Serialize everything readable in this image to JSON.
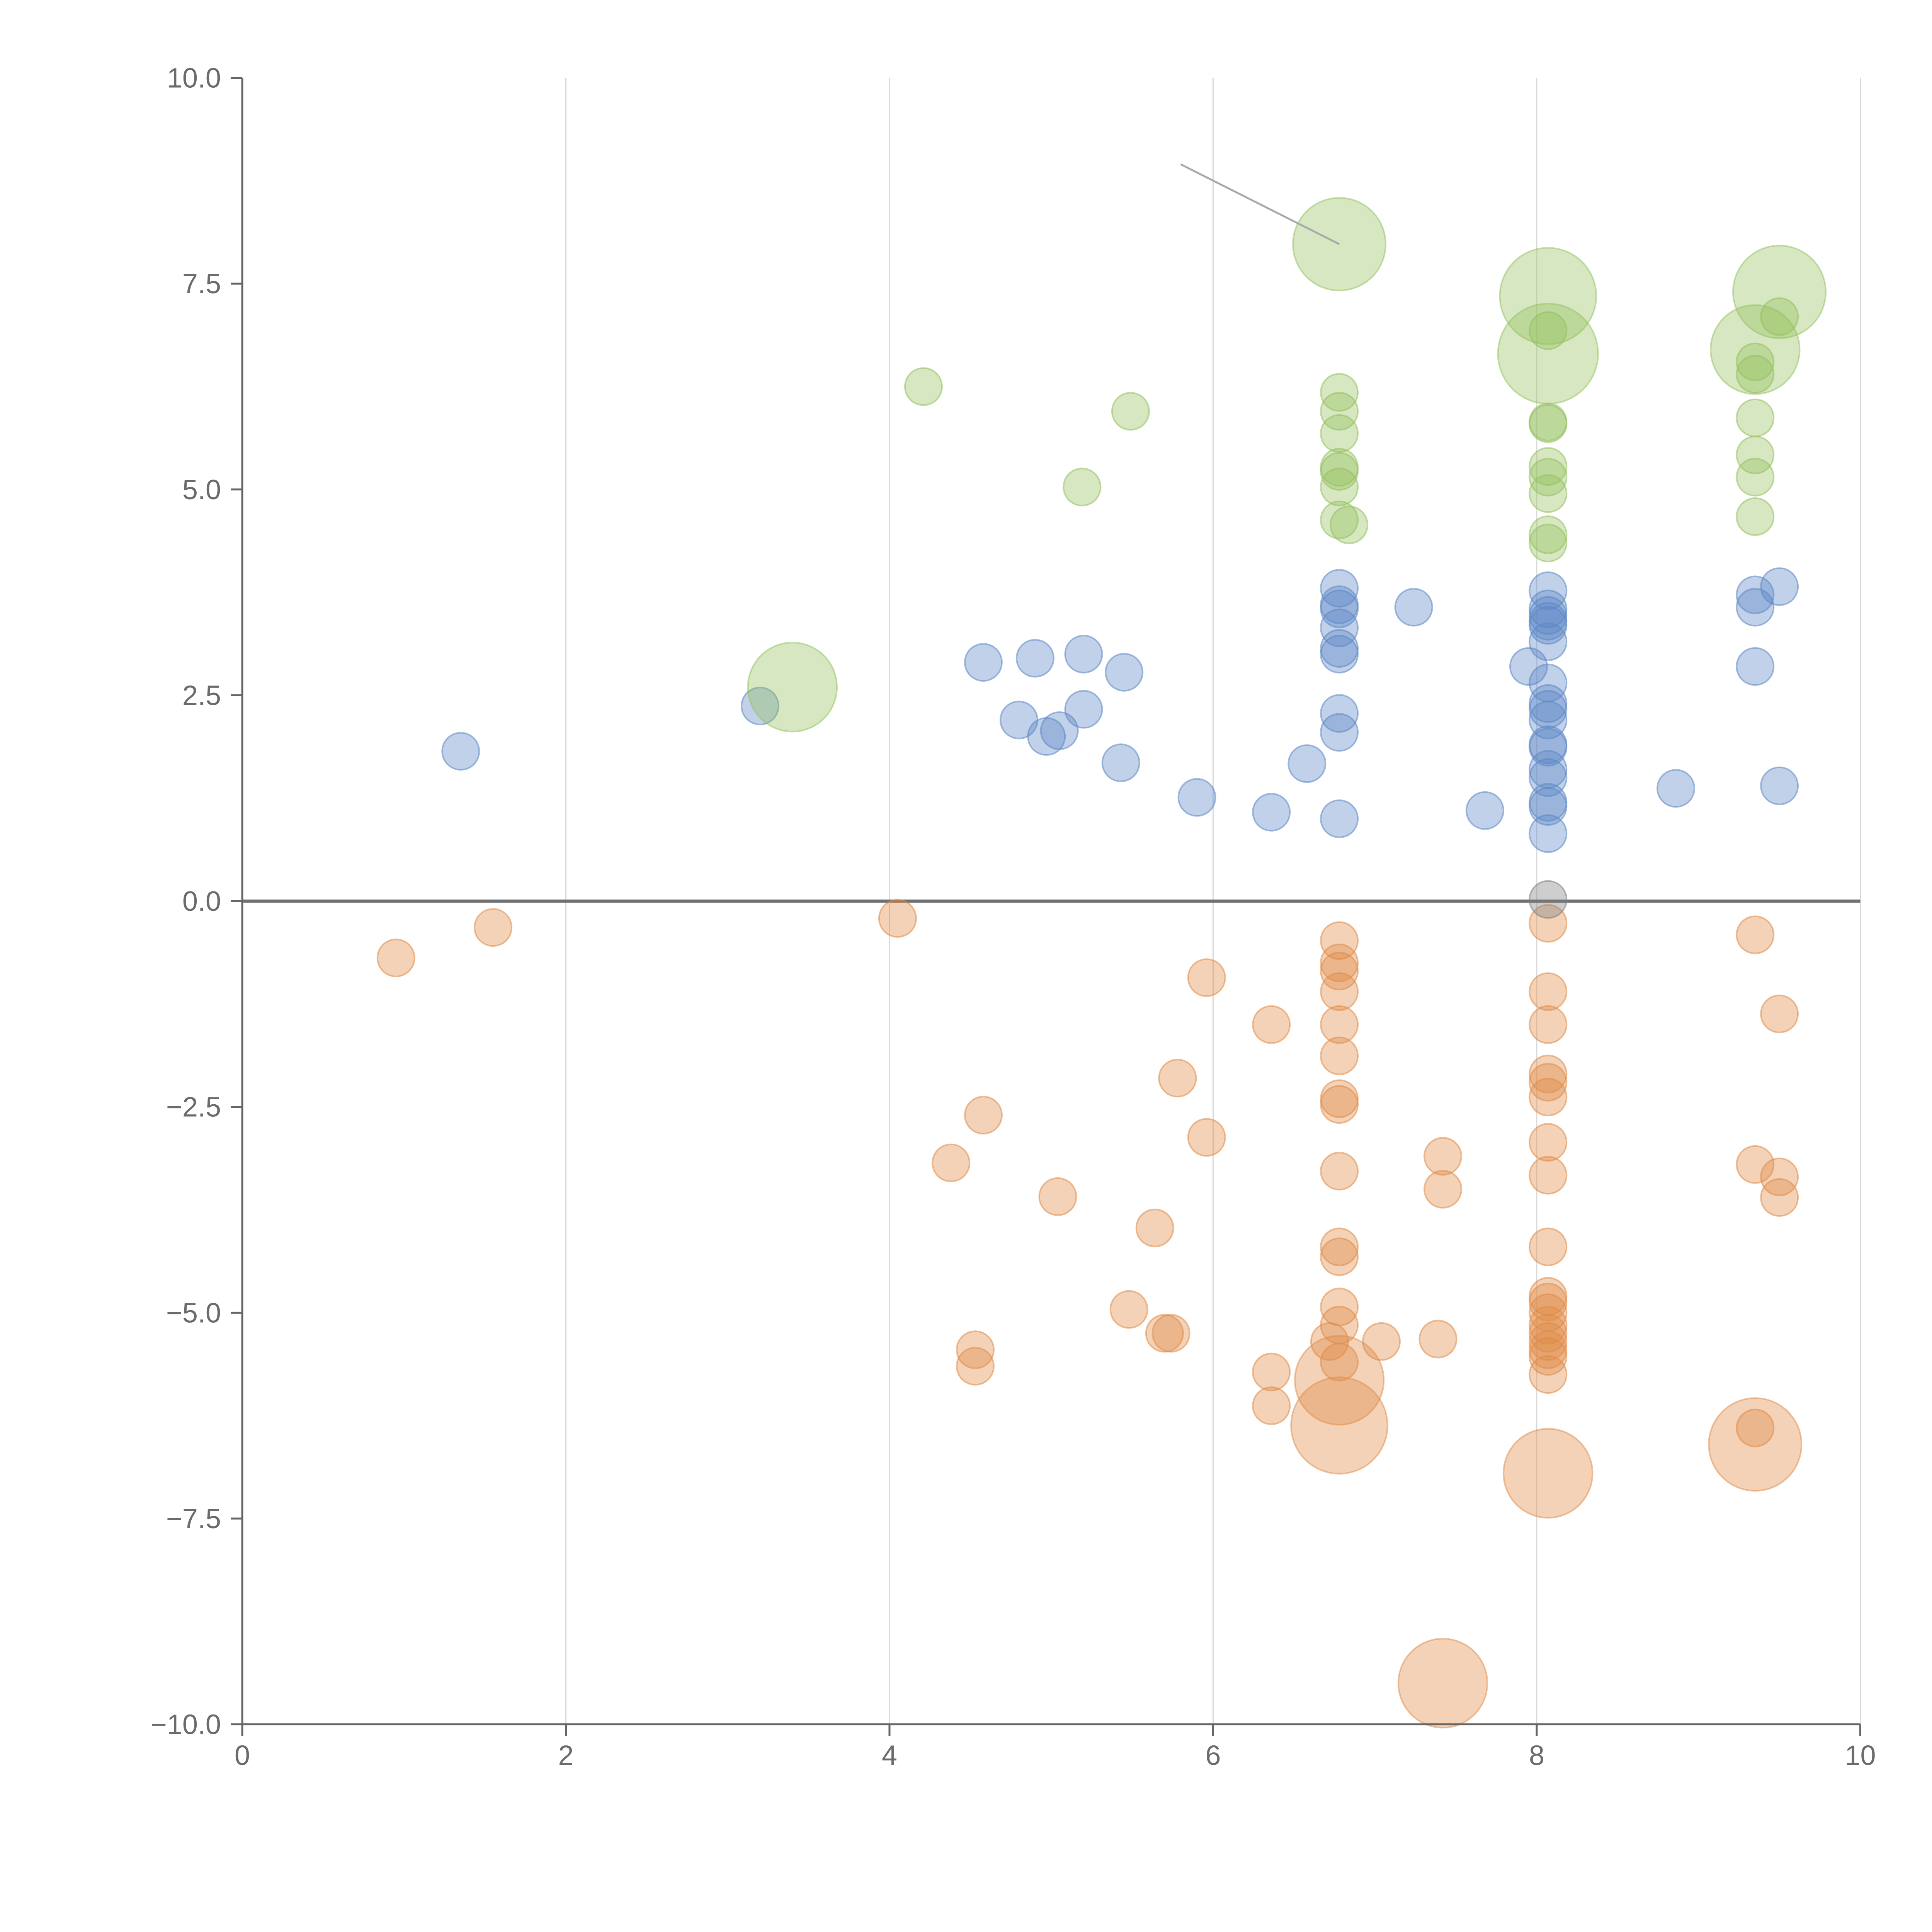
{
  "chart_data": {
    "type": "scatter",
    "title": "",
    "xlabel": "",
    "ylabel": "",
    "xlim": [
      0,
      10
    ],
    "ylim": [
      -10,
      10
    ],
    "x_ticks": [
      0,
      2,
      4,
      6,
      8,
      10
    ],
    "x_tick_labels": [
      "0",
      "2",
      "4",
      "6",
      "8",
      "10"
    ],
    "y_ticks": [
      10,
      7.5,
      5,
      2.5,
      0,
      -2.5,
      -5,
      -7.5,
      -10
    ],
    "y_tick_labels": [
      "10.0",
      "7.5",
      "5.0",
      "2.5",
      "0.0",
      "−2.5",
      "−5.0",
      "−7.5",
      "−10.0"
    ],
    "grid": "vertical",
    "zero_line": 0,
    "colors": {
      "blue": "#5b87c5",
      "orange": "#e08a45",
      "green": "#93bf5c",
      "axis": "#666666",
      "grid": "#d9d9d9",
      "zero_line": "#707070",
      "leader_line": "#aaaaaa",
      "gray_point": "#7f7f7f"
    },
    "series": [
      {
        "name": "blue",
        "color": "#5b87c5",
        "points": [
          [
            1.35,
            1.82
          ],
          [
            3.2,
            2.37
          ],
          [
            4.58,
            2.9
          ],
          [
            4.9,
            2.95
          ],
          [
            5.2,
            3.0
          ],
          [
            5.45,
            2.78
          ],
          [
            4.8,
            2.2
          ],
          [
            4.97,
            2.0
          ],
          [
            5.05,
            2.07
          ],
          [
            5.2,
            2.33
          ],
          [
            5.43,
            1.68
          ],
          [
            5.9,
            1.26
          ],
          [
            6.36,
            1.08
          ],
          [
            6.58,
            1.67
          ],
          [
            6.78,
            1.0
          ],
          [
            6.78,
            3.8
          ],
          [
            6.78,
            3.6
          ],
          [
            6.78,
            3.55
          ],
          [
            6.78,
            3.32
          ],
          [
            6.78,
            3.07
          ],
          [
            6.78,
            3.0
          ],
          [
            6.78,
            2.28
          ],
          [
            6.78,
            2.05
          ],
          [
            7.24,
            3.57
          ],
          [
            7.68,
            1.1
          ],
          [
            7.95,
            2.85
          ],
          [
            8.07,
            3.77
          ],
          [
            8.07,
            3.55
          ],
          [
            8.07,
            3.47
          ],
          [
            8.07,
            3.4
          ],
          [
            8.07,
            3.35
          ],
          [
            8.07,
            3.15
          ],
          [
            8.07,
            2.65
          ],
          [
            8.07,
            2.4
          ],
          [
            8.07,
            2.33
          ],
          [
            8.07,
            2.2
          ],
          [
            8.07,
            1.9
          ],
          [
            8.07,
            1.87
          ],
          [
            8.07,
            1.6
          ],
          [
            8.07,
            1.5
          ],
          [
            8.07,
            1.2
          ],
          [
            8.07,
            1.15
          ],
          [
            8.07,
            0.82
          ],
          [
            8.86,
            1.37
          ],
          [
            9.35,
            3.72
          ],
          [
            9.35,
            3.57
          ],
          [
            9.35,
            2.85
          ],
          [
            9.5,
            3.82
          ],
          [
            9.5,
            1.4
          ]
        ]
      },
      {
        "name": "orange",
        "color": "#e08a45",
        "points": [
          [
            0.95,
            -0.69
          ],
          [
            1.55,
            -0.32
          ],
          [
            4.05,
            -0.21
          ],
          [
            4.38,
            -3.18
          ],
          [
            4.58,
            -2.6
          ],
          [
            4.53,
            -5.45
          ],
          [
            4.53,
            -5.65
          ],
          [
            5.04,
            -3.59
          ],
          [
            5.48,
            -4.96
          ],
          [
            5.64,
            -3.97
          ],
          [
            5.7,
            -5.25
          ],
          [
            5.74,
            -5.25
          ],
          [
            5.78,
            -2.15
          ],
          [
            5.96,
            -0.93
          ],
          [
            5.96,
            -2.87
          ],
          [
            6.36,
            -1.5
          ],
          [
            6.36,
            -5.72
          ],
          [
            6.36,
            -6.13
          ],
          [
            6.78,
            -0.48
          ],
          [
            6.78,
            -0.75
          ],
          [
            6.78,
            -0.85
          ],
          [
            6.78,
            -1.1
          ],
          [
            6.78,
            -1.5
          ],
          [
            6.78,
            -1.88
          ],
          [
            6.78,
            -2.4
          ],
          [
            6.78,
            -2.47
          ],
          [
            6.78,
            -3.28
          ],
          [
            6.78,
            -4.2
          ],
          [
            6.78,
            -4.32
          ],
          [
            6.78,
            -4.93
          ],
          [
            6.78,
            -5.15
          ],
          [
            6.78,
            -5.6
          ],
          [
            6.72,
            -5.35
          ],
          [
            7.04,
            -5.35
          ],
          [
            7.39,
            -5.32
          ],
          [
            7.42,
            -3.1
          ],
          [
            7.42,
            -3.5
          ],
          [
            8.07,
            -0.27
          ],
          [
            8.07,
            -1.1
          ],
          [
            8.07,
            -1.5
          ],
          [
            8.07,
            -2.1
          ],
          [
            8.07,
            -2.2
          ],
          [
            8.07,
            -2.38
          ],
          [
            8.07,
            -2.93
          ],
          [
            8.07,
            -3.33
          ],
          [
            8.07,
            -4.2
          ],
          [
            8.07,
            -4.8
          ],
          [
            8.07,
            -4.87
          ],
          [
            8.07,
            -5.0
          ],
          [
            8.07,
            -5.15
          ],
          [
            8.07,
            -5.25
          ],
          [
            8.07,
            -5.35
          ],
          [
            8.07,
            -5.45
          ],
          [
            8.07,
            -5.53
          ],
          [
            8.07,
            -5.75
          ],
          [
            9.35,
            -0.41
          ],
          [
            9.35,
            -3.2
          ],
          [
            9.35,
            -6.4
          ],
          [
            9.5,
            -1.37
          ],
          [
            9.5,
            -3.35
          ],
          [
            9.5,
            -3.6
          ]
        ],
        "large_points": [
          [
            6.78,
            -5.82,
            2.4
          ],
          [
            6.78,
            -6.37,
            2.6
          ],
          [
            8.07,
            -6.95,
            2.4
          ],
          [
            9.35,
            -6.6,
            2.5
          ],
          [
            7.42,
            -9.5,
            2.4
          ]
        ]
      },
      {
        "name": "green",
        "color": "#93bf5c",
        "points": [
          [
            4.21,
            6.25
          ],
          [
            5.19,
            5.03
          ],
          [
            5.49,
            5.95
          ],
          [
            6.78,
            6.18
          ],
          [
            6.78,
            5.95
          ],
          [
            6.78,
            5.68
          ],
          [
            6.78,
            5.27
          ],
          [
            6.78,
            5.22
          ],
          [
            6.78,
            5.03
          ],
          [
            6.78,
            4.63
          ],
          [
            6.84,
            4.57
          ],
          [
            8.07,
            6.93
          ],
          [
            8.07,
            5.82
          ],
          [
            8.07,
            5.8
          ],
          [
            8.07,
            5.28
          ],
          [
            8.07,
            5.15
          ],
          [
            8.07,
            4.95
          ],
          [
            8.07,
            4.45
          ],
          [
            8.07,
            4.35
          ],
          [
            9.35,
            6.55
          ],
          [
            9.35,
            6.4
          ],
          [
            9.35,
            5.87
          ],
          [
            9.35,
            5.42
          ],
          [
            9.35,
            5.15
          ],
          [
            9.35,
            4.67
          ],
          [
            9.5,
            7.1
          ]
        ],
        "large_points": [
          [
            3.4,
            2.6,
            2.4
          ],
          [
            6.78,
            7.98,
            2.5
          ],
          [
            8.07,
            7.35,
            2.6
          ],
          [
            8.07,
            6.65,
            2.7
          ],
          [
            9.35,
            6.7,
            2.4
          ],
          [
            9.5,
            7.4,
            2.5
          ]
        ]
      },
      {
        "name": "gray",
        "color": "#7f7f7f",
        "points": [
          [
            8.07,
            0.02
          ]
        ]
      }
    ],
    "annotations": [
      {
        "from": [
          5.8,
          8.95
        ],
        "to": [
          6.78,
          7.98
        ],
        "color": "#aaaaaa"
      }
    ]
  }
}
